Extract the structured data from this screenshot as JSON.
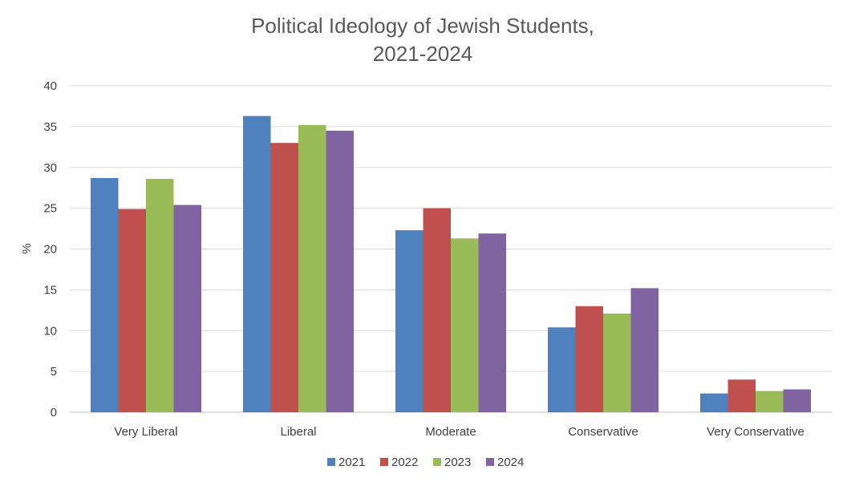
{
  "chart_data": {
    "type": "bar",
    "title_line1": "Political Ideology of Jewish Students,",
    "title_line2": "2021-2024",
    "xlabel": "",
    "ylabel": "%",
    "ylim": [
      0,
      40
    ],
    "yticks": [
      0,
      5,
      10,
      15,
      20,
      25,
      30,
      35,
      40
    ],
    "categories": [
      "Very Liberal",
      "Liberal",
      "Moderate",
      "Conservative",
      "Very Conservative"
    ],
    "series": [
      {
        "name": "2021",
        "color": "#4F81BD",
        "values": [
          28.7,
          36.3,
          22.3,
          10.4,
          2.3
        ]
      },
      {
        "name": "2022",
        "color": "#C0504D",
        "values": [
          24.9,
          33.0,
          25.0,
          13.0,
          4.0
        ]
      },
      {
        "name": "2023",
        "color": "#9BBB59",
        "values": [
          28.6,
          35.2,
          21.3,
          12.1,
          2.6
        ]
      },
      {
        "name": "2024",
        "color": "#8064A2",
        "values": [
          25.4,
          34.5,
          21.9,
          15.2,
          2.8
        ]
      }
    ],
    "grid": true,
    "legend_position": "bottom-center"
  }
}
